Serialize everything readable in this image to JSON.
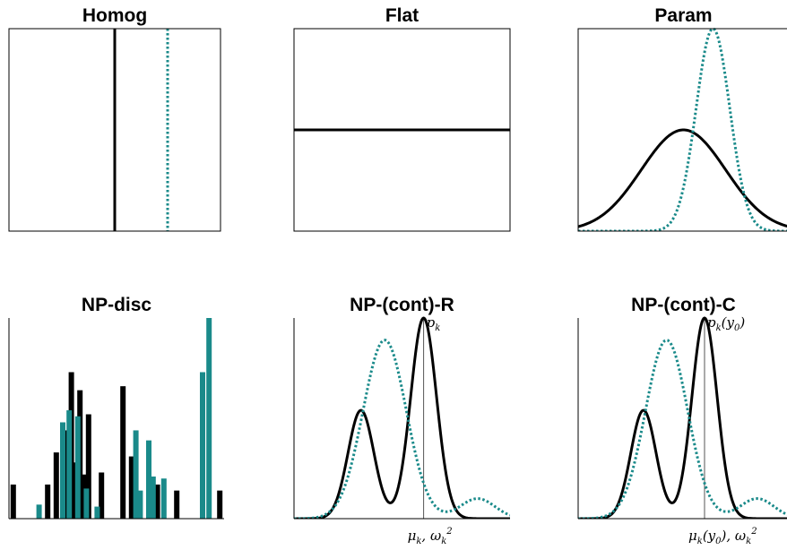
{
  "colors": {
    "black": "#000000",
    "teal": "#1a8a8a",
    "frame": "#000000",
    "marker": "#555555"
  },
  "chart_data": [
    {
      "type": "line",
      "title": "Homog",
      "xlim": [
        0,
        1
      ],
      "ylim": [
        0,
        1
      ],
      "series": [
        {
          "style": "solid",
          "color": "#000000",
          "kind": "vline",
          "x": 0.5
        },
        {
          "style": "dotted",
          "color": "#1a8a8a",
          "kind": "vline",
          "x": 0.75
        }
      ]
    },
    {
      "type": "line",
      "title": "Flat",
      "xlim": [
        0,
        1
      ],
      "ylim": [
        0,
        1
      ],
      "series": [
        {
          "style": "solid",
          "color": "#000000",
          "kind": "hline",
          "y": 0.5
        }
      ]
    },
    {
      "type": "line",
      "title": "Param",
      "xlim": [
        0,
        1
      ],
      "ylim": [
        0,
        1
      ],
      "series": [
        {
          "style": "solid",
          "color": "#000000",
          "kind": "gaussian",
          "mu": 0.5,
          "sigma": 0.2,
          "peak": 0.5
        },
        {
          "style": "dotted",
          "color": "#1a8a8a",
          "kind": "gaussian",
          "mu": 0.64,
          "sigma": 0.08,
          "peak": 1.0
        }
      ]
    },
    {
      "type": "bar",
      "title": "NP-disc",
      "xlim": [
        0,
        1
      ],
      "ylim": [
        0,
        1
      ],
      "series": [
        {
          "style": "solid",
          "color": "#000000",
          "x": [
            0.02,
            0.18,
            0.22,
            0.27,
            0.29,
            0.31,
            0.33,
            0.35,
            0.37,
            0.43,
            0.53,
            0.57,
            0.69,
            0.78,
            0.98
          ],
          "values": [
            0.17,
            0.17,
            0.33,
            0.44,
            0.73,
            0.28,
            0.64,
            0.22,
            0.52,
            0.23,
            0.66,
            0.31,
            0.17,
            0.14,
            0.14
          ]
        },
        {
          "style": "solid",
          "color": "#1a8a8a",
          "x": [
            0.14,
            0.25,
            0.28,
            0.32,
            0.36,
            0.41,
            0.59,
            0.61,
            0.65,
            0.67,
            0.72,
            0.9,
            0.93
          ],
          "values": [
            0.07,
            0.48,
            0.54,
            0.51,
            0.15,
            0.06,
            0.44,
            0.14,
            0.39,
            0.21,
            0.2,
            0.73,
            1.0
          ]
        }
      ]
    },
    {
      "type": "line",
      "title": "NP-(cont)-R",
      "xlim": [
        0,
        1
      ],
      "ylim": [
        0,
        1
      ],
      "marker": {
        "x": 0.6,
        "top_label": "p",
        "top_sub": "k",
        "axis_label": "μ",
        "axis_sub": "k",
        "axis_label2": "ω",
        "axis_sub2": "k",
        "axis_sup2": "2"
      },
      "series": [
        {
          "style": "solid",
          "color": "#000000",
          "kind": "mixture",
          "components": [
            {
              "mu": 0.31,
              "sigma": 0.06,
              "peak": 0.54
            },
            {
              "mu": 0.6,
              "sigma": 0.06,
              "peak": 1.0
            }
          ]
        },
        {
          "style": "dotted",
          "color": "#1a8a8a",
          "kind": "mixture",
          "components": [
            {
              "mu": 0.42,
              "sigma": 0.1,
              "peak": 0.89
            },
            {
              "mu": 0.85,
              "sigma": 0.08,
              "peak": 0.1
            }
          ]
        }
      ]
    },
    {
      "type": "line",
      "title": "NP-(cont)-C",
      "xlim": [
        0,
        1
      ],
      "ylim": [
        0,
        1
      ],
      "marker": {
        "x": 0.6,
        "top_label": "p",
        "top_sub": "k",
        "top_suffix": "(y",
        "top_sub2": "0",
        "top_close": ")",
        "axis_label": "μ",
        "axis_sub": "k",
        "axis_mid": "(y",
        "axis_sub_b": "0",
        "axis_close": "), ω",
        "axis_sub2": "k",
        "axis_sup2": "2"
      },
      "series": [
        {
          "style": "solid",
          "color": "#000000",
          "kind": "mixture",
          "components": [
            {
              "mu": 0.31,
              "sigma": 0.06,
              "peak": 0.54
            },
            {
              "mu": 0.6,
              "sigma": 0.06,
              "peak": 1.0
            }
          ]
        },
        {
          "style": "dotted",
          "color": "#1a8a8a",
          "kind": "mixture",
          "components": [
            {
              "mu": 0.42,
              "sigma": 0.1,
              "peak": 0.89
            },
            {
              "mu": 0.85,
              "sigma": 0.08,
              "peak": 0.1
            }
          ]
        }
      ]
    }
  ]
}
